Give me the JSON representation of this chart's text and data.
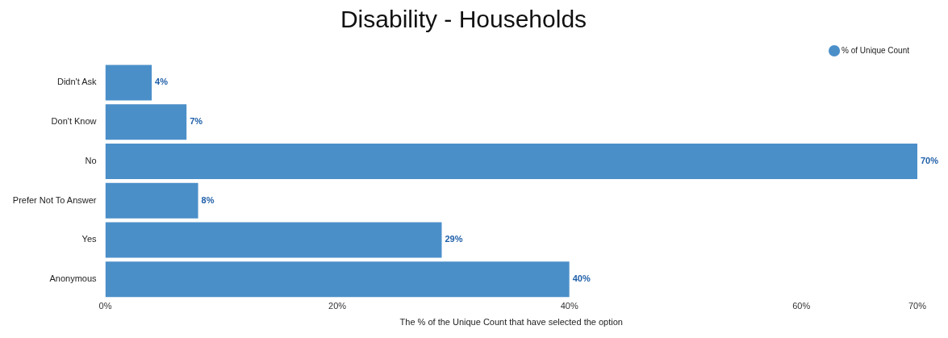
{
  "chart_data": {
    "type": "bar",
    "orientation": "horizontal",
    "title": "Disability - Households",
    "xlabel": "The % of the Unique Count that have selected the option",
    "categories": [
      "Didn't Ask",
      "Don't Know",
      "No",
      "Prefer Not To Answer",
      "Yes",
      "Anonymous"
    ],
    "series": [
      {
        "name": "% of Unique Count",
        "color": "#4b8fc9",
        "values": [
          4,
          7,
          70,
          8,
          29,
          40
        ]
      }
    ],
    "xlim": [
      0,
      70
    ],
    "xticks": [
      {
        "value": 0,
        "label": "0%"
      },
      {
        "value": 20,
        "label": "20%"
      },
      {
        "value": 40,
        "label": "40%"
      },
      {
        "value": 60,
        "label": "60%"
      },
      {
        "value": 70,
        "label": "70%"
      }
    ],
    "value_labels": [
      "4%",
      "7%",
      "70%",
      "8%",
      "29%",
      "40%"
    ],
    "grid": false,
    "legend": "top right"
  }
}
